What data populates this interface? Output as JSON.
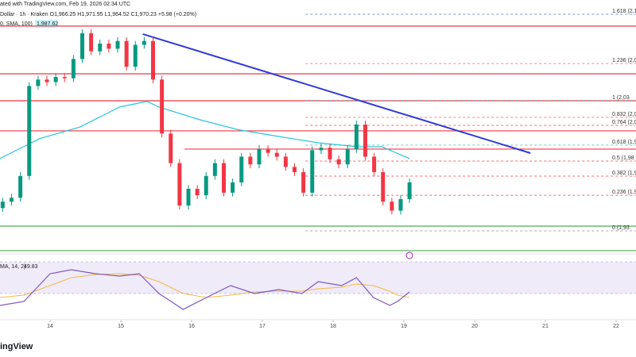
{
  "header": {
    "line1": "ated with TradingView.com, Feb 19, 2026 02:34 UTC",
    "line2": "Dollar · 1h · Kraken  O1,966.25 H1,971.95 L1,964.52 C1,970.23 +5.98 (+0.20%)",
    "line3": "0, SMA, 100)",
    "sma_value": "1,987.62",
    "rsi_label": "MA, 14, 2)",
    "rsi_value": "49.83",
    "logo": "ingView"
  },
  "chart_data": {
    "type": "candlestick",
    "up_color": "#089981",
    "down_color": "#f23645",
    "xlim": [
      13.292,
      22.281
    ],
    "ylim": [
      1914.4,
      2111.9
    ],
    "xticks": [
      14,
      15,
      16,
      17,
      18,
      19,
      20,
      21,
      22
    ],
    "x": [
      13.33,
      13.455,
      13.58,
      13.705,
      13.83,
      13.955,
      14.08,
      14.205,
      14.33,
      14.455,
      14.58,
      14.705,
      14.83,
      14.955,
      15.08,
      15.205,
      15.33,
      15.455,
      15.58,
      15.705,
      15.83,
      15.955,
      16.08,
      16.205,
      16.33,
      16.455,
      16.58,
      16.705,
      16.83,
      16.955,
      17.08,
      17.205,
      17.33,
      17.455,
      17.58,
      17.705,
      17.83,
      17.955,
      18.08,
      18.205,
      18.33,
      18.455,
      18.58,
      18.705,
      18.83,
      18.955,
      19.08
    ],
    "open": [
      1950,
      1955,
      1958,
      1975,
      2045,
      2050,
      2048,
      2052,
      2051,
      2066,
      2086,
      2072,
      2078,
      2074,
      2080,
      2060,
      2077,
      2080,
      2050,
      2008,
      1985,
      1952,
      1965,
      1960,
      1975,
      1985,
      1962,
      1970,
      1990,
      1984,
      1996,
      1993,
      1990,
      1982,
      1978,
      1962,
      1995,
      1997,
      1988,
      1984,
      1996,
      2015,
      1990,
      1978,
      1955,
      1948,
      1957
    ],
    "high": [
      1958,
      1961,
      1978,
      2048,
      2053,
      2053,
      2055,
      2055,
      2069,
      2089,
      2089,
      2081,
      2081,
      2083,
      2083,
      2080,
      2083,
      2083,
      2053,
      2011,
      1988,
      1968,
      1968,
      1978,
      1988,
      1988,
      1973,
      1993,
      1993,
      1999,
      1999,
      1996,
      1993,
      1985,
      1981,
      1998,
      2000,
      2000,
      1991,
      1999,
      2018,
      2018,
      1993,
      1981,
      1958,
      1960,
      1973
    ],
    "low": [
      1947,
      1952,
      1955,
      1972,
      2042,
      2045,
      2045,
      2048,
      2048,
      2063,
      2069,
      2069,
      2071,
      2071,
      2057,
      2057,
      2074,
      2047,
      2005,
      1982,
      1949,
      1949,
      1957,
      1957,
      1972,
      1959,
      1959,
      1967,
      1981,
      1981,
      1990,
      1987,
      1979,
      1975,
      1959,
      1959,
      1992,
      1985,
      1981,
      1981,
      1993,
      1987,
      1975,
      1952,
      1945,
      1945,
      1954
    ],
    "close": [
      1955,
      1958,
      1975,
      2045,
      2050,
      2048,
      2052,
      2051,
      2066,
      2086,
      2072,
      2078,
      2074,
      2080,
      2060,
      2077,
      2080,
      2050,
      2008,
      1985,
      1952,
      1965,
      1960,
      1975,
      1985,
      1962,
      1970,
      1990,
      1984,
      1996,
      1993,
      1990,
      1982,
      1978,
      1962,
      1995,
      1997,
      1988,
      1984,
      1996,
      2015,
      1990,
      1978,
      1955,
      1948,
      1957,
      1970
    ],
    "sma": {
      "color": "#26c6da",
      "x": [
        13.29,
        13.85,
        14.42,
        14.98,
        15.37,
        15.54,
        16.1,
        16.66,
        17.22,
        17.79,
        18.35,
        18.69,
        19.08
      ],
      "values": [
        1988.5,
        2004,
        2013,
        2028.6,
        2033,
        2028.6,
        2019,
        2011,
        2005.8,
        2000.8,
        1997.7,
        1997.7,
        1988.5
      ]
    },
    "levels": [
      {
        "price": 2091.6,
        "from": 13.292,
        "color": "#f23645"
      },
      {
        "price": 2054.5,
        "from": 13.292,
        "color": "#f23645"
      },
      {
        "price": 2033.5,
        "from": 13.292,
        "color": "#f23645"
      },
      {
        "price": 2010.1,
        "from": 13.292,
        "color": "#f23645"
      },
      {
        "price": 1995.9,
        "from": 15.9,
        "color": "#f23645"
      },
      {
        "price": 1936,
        "from": 13.292,
        "color": "#4caf50"
      },
      {
        "price": 1916.9,
        "from": 13.292,
        "color": "#4caf50"
      }
    ],
    "trendline": {
      "color": "#2f3bd6",
      "x": [
        15.31,
        20.79
      ],
      "values": [
        2085.4,
        1992.8
      ]
    },
    "fib": {
      "from": 17.61,
      "levels": [
        {
          "label": "1.618 (2,10",
          "price": 2100.8,
          "color": "#5b6bd6"
        },
        {
          "label": "1.236 (2,06",
          "price": 2062.5,
          "color": "#f23645"
        },
        {
          "label": "1 (2,03",
          "price": 2033.5,
          "color": "#26a69a"
        },
        {
          "label": "0.832 (2,01",
          "price": 2020.6,
          "color": "#f23645"
        },
        {
          "label": "0.764 (2,01",
          "price": 2014.4,
          "color": "#f23645"
        },
        {
          "label": "0.618 (1,99",
          "price": 1999,
          "color": "#26a69a"
        },
        {
          "label": "0.5 (1,98",
          "price": 1986.6,
          "color": "#f23645"
        },
        {
          "label": "0.382 (1,96",
          "price": 1974.9,
          "color": "#f23645"
        },
        {
          "label": "0.236 (1,95",
          "price": 1960,
          "color": "#f23645"
        },
        {
          "label": "0 (1,93",
          "price": 1932.3,
          "color": "#888888"
        }
      ]
    },
    "rsi": {
      "color": "#7e57c2",
      "ma_color": "#f5b942",
      "ylim": [
        0,
        100
      ],
      "band": [
        30,
        70
      ],
      "x": [
        13.29,
        13.63,
        14.0,
        14.3,
        14.64,
        14.98,
        15.26,
        15.54,
        15.88,
        16.21,
        16.55,
        16.89,
        17.23,
        17.56,
        17.79,
        18.12,
        18.33,
        18.57,
        18.8,
        18.91,
        19.08
      ],
      "values": [
        15,
        20,
        55,
        60,
        55,
        52,
        55,
        30,
        10,
        25,
        40,
        30,
        35,
        30,
        45,
        40,
        50,
        25,
        15,
        20,
        32
      ],
      "ma_values": [
        25,
        28,
        40,
        50,
        54,
        55,
        53,
        45,
        30,
        25,
        28,
        32,
        33,
        33,
        36,
        38,
        42,
        40,
        33,
        28,
        25
      ]
    }
  }
}
